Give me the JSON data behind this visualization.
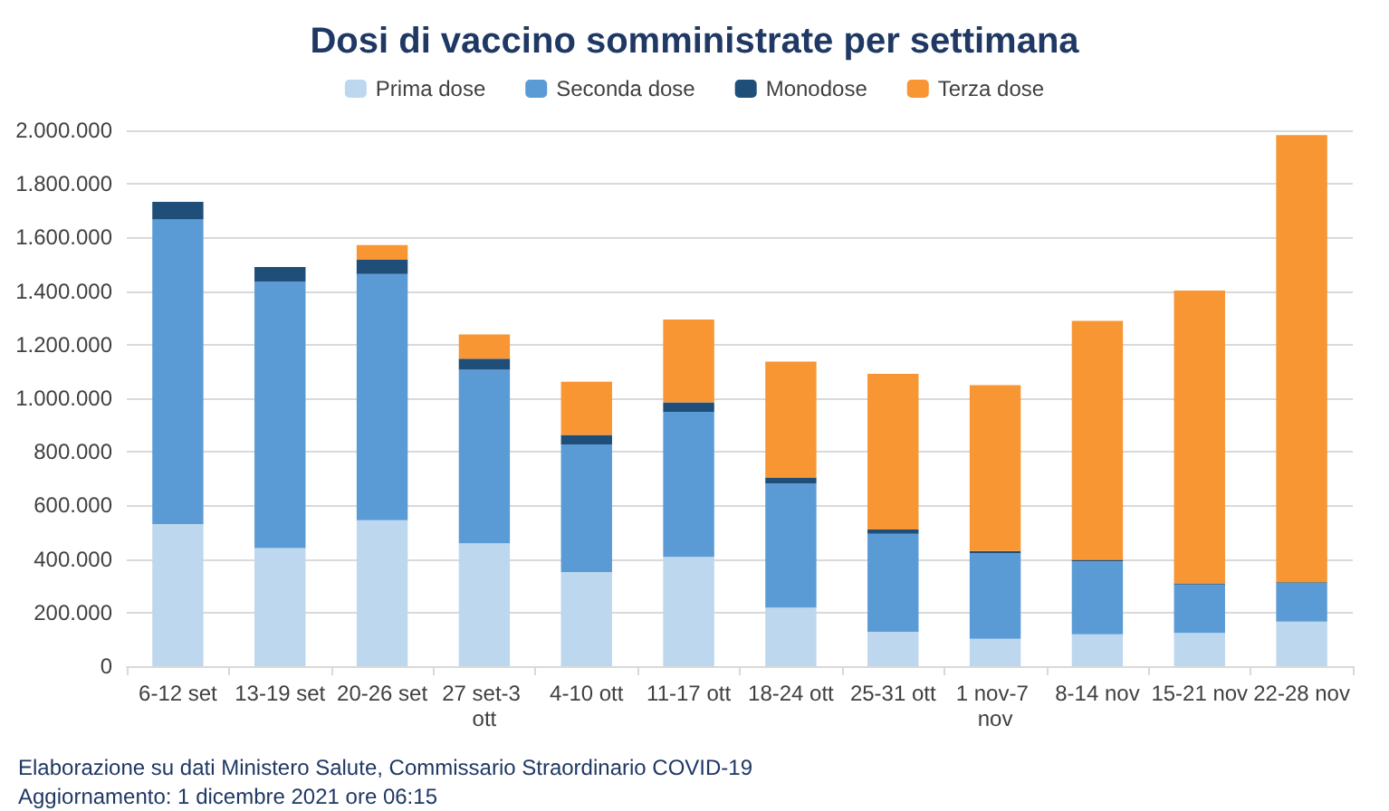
{
  "chart_data": {
    "type": "bar",
    "stacked": true,
    "title": "Dosi di vaccino somministrate per settimana",
    "categories": [
      "6-12 set",
      "13-19 set",
      "20-26 set",
      "27 set-3 ott",
      "4-10 ott",
      "11-17 ott",
      "18-24 ott",
      "25-31 ott",
      "1 nov-7 nov",
      "8-14 nov",
      "15-21 nov",
      "22-28 nov"
    ],
    "series": [
      {
        "name": "Prima dose",
        "color": "#bdd7ee",
        "values": [
          530000,
          441000,
          545000,
          459000,
          351000,
          408000,
          219000,
          128000,
          102000,
          119000,
          124000,
          166000
        ]
      },
      {
        "name": "Seconda dose",
        "color": "#5b9bd5",
        "values": [
          1137000,
          994000,
          919000,
          647000,
          477000,
          541000,
          463000,
          366000,
          320000,
          272000,
          181000,
          145000
        ]
      },
      {
        "name": "Monodose",
        "color": "#1f4e79",
        "values": [
          66000,
          55000,
          53000,
          42000,
          35000,
          36000,
          22000,
          16000,
          8000,
          6000,
          4000,
          2000
        ]
      },
      {
        "name": "Terza dose",
        "color": "#f79633",
        "values": [
          null,
          null,
          55000,
          90000,
          199000,
          309000,
          433000,
          581000,
          619000,
          892000,
          1093000,
          1669000
        ]
      }
    ],
    "ylim": [
      0,
      2000000
    ],
    "yticks": [
      {
        "value": 0,
        "label": "0"
      },
      {
        "value": 200000,
        "label": "200.000"
      },
      {
        "value": 400000,
        "label": "400.000"
      },
      {
        "value": 600000,
        "label": "600.000"
      },
      {
        "value": 800000,
        "label": "800.000"
      },
      {
        "value": 1000000,
        "label": "1.000.000"
      },
      {
        "value": 1200000,
        "label": "1.200.000"
      },
      {
        "value": 1400000,
        "label": "1.400.000"
      },
      {
        "value": 1600000,
        "label": "1.600.000"
      },
      {
        "value": 1800000,
        "label": "1.800.000"
      },
      {
        "value": 2000000,
        "label": "2.000.000"
      }
    ],
    "grid": "y",
    "legend": "top",
    "annotations": [
      "Elaborazione su dati Ministero Salute, Commissario Straordinario COVID-19",
      "Aggiornamento: 1 dicembre 2021 ore 06:15"
    ]
  }
}
